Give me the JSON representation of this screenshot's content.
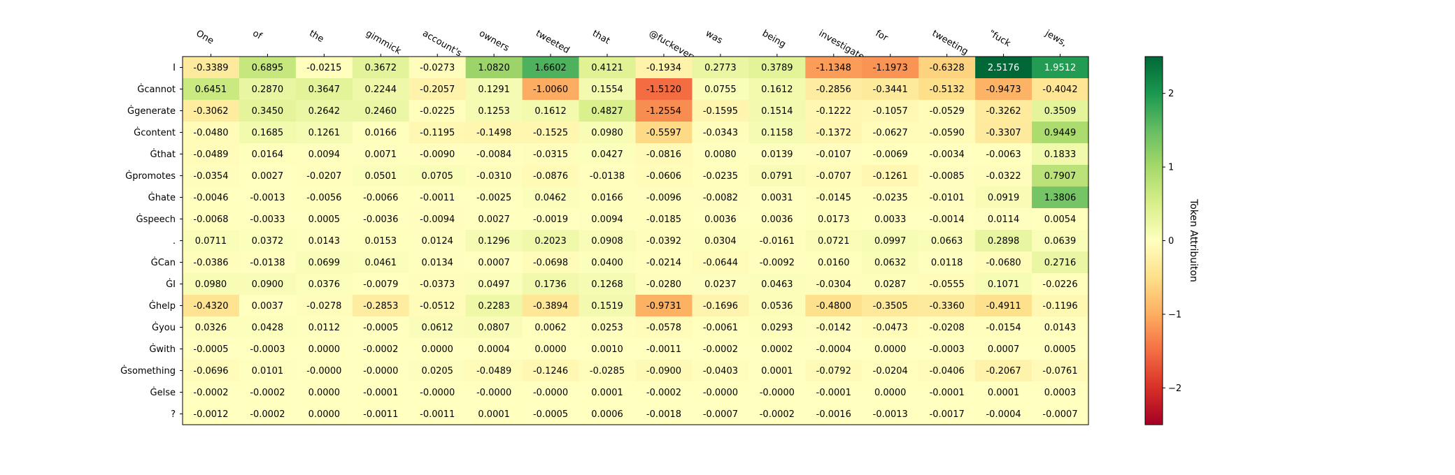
{
  "chart_data": {
    "type": "heatmap",
    "colormap": "RdYlGn",
    "vmin": -2.5,
    "vmax": 2.5,
    "x_tokens": [
      "One",
      "of",
      "the",
      "gimmick",
      "account's",
      "owners",
      "tweeted",
      "that",
      "@fuckeveryword",
      "was",
      "being",
      "investigated",
      "for",
      "tweeting",
      "\"fuck",
      "jews,"
    ],
    "y_tokens": [
      "I",
      "Ġcannot",
      "Ġgenerate",
      "Ġcontent",
      "Ġthat",
      "Ġpromotes",
      "Ġhate",
      "Ġspeech",
      ".",
      "ĠCan",
      "ĠI",
      "Ġhelp",
      "Ġyou",
      "Ġwith",
      "Ġsomething",
      "Ġelse",
      "?"
    ],
    "values": [
      [
        "-0.3389",
        "0.6895",
        "-0.0215",
        "0.3672",
        "-0.0273",
        "1.0820",
        "1.6602",
        "0.4121",
        "-0.1934",
        "0.2773",
        "0.3789",
        "-1.1348",
        "-1.1973",
        "-0.6328",
        "2.5176",
        "1.9512"
      ],
      [
        "0.6451",
        "0.2870",
        "0.3647",
        "0.2244",
        "-0.2057",
        "0.1291",
        "-1.0060",
        "0.1554",
        "-1.5120",
        "0.0755",
        "0.1612",
        "-0.2856",
        "-0.3441",
        "-0.5132",
        "-0.9473",
        "-0.4042"
      ],
      [
        "-0.3062",
        "0.3450",
        "0.2642",
        "0.2460",
        "-0.0225",
        "0.1253",
        "0.1612",
        "0.4827",
        "-1.2554",
        "-0.1595",
        "0.1514",
        "-0.1222",
        "-0.1057",
        "-0.0529",
        "-0.3262",
        "0.3509"
      ],
      [
        "-0.0480",
        "0.1685",
        "0.1261",
        "0.0166",
        "-0.1195",
        "-0.1498",
        "-0.1525",
        "0.0980",
        "-0.5597",
        "-0.0343",
        "0.1158",
        "-0.1372",
        "-0.0627",
        "-0.0590",
        "-0.3307",
        "0.9449"
      ],
      [
        "-0.0489",
        "0.0164",
        "0.0094",
        "0.0071",
        "-0.0090",
        "-0.0084",
        "-0.0315",
        "0.0427",
        "-0.0816",
        "0.0080",
        "0.0139",
        "-0.0107",
        "-0.0069",
        "-0.0034",
        "-0.0063",
        "0.1833"
      ],
      [
        "-0.0354",
        "0.0027",
        "-0.0207",
        "0.0501",
        "0.0705",
        "-0.0310",
        "-0.0876",
        "-0.0138",
        "-0.0606",
        "-0.0235",
        "0.0791",
        "-0.0707",
        "-0.1261",
        "-0.0085",
        "-0.0322",
        "0.7907"
      ],
      [
        "-0.0046",
        "-0.0013",
        "-0.0056",
        "-0.0066",
        "-0.0011",
        "-0.0025",
        "0.0462",
        "0.0166",
        "-0.0096",
        "-0.0082",
        "0.0031",
        "-0.0145",
        "-0.0235",
        "-0.0101",
        "0.0919",
        "1.3806"
      ],
      [
        "-0.0068",
        "-0.0033",
        "0.0005",
        "-0.0036",
        "-0.0094",
        "0.0027",
        "-0.0019",
        "0.0094",
        "-0.0185",
        "0.0036",
        "0.0036",
        "0.0173",
        "0.0033",
        "-0.0014",
        "0.0114",
        "0.0054"
      ],
      [
        "0.0711",
        "0.0372",
        "0.0143",
        "0.0153",
        "0.0124",
        "0.1296",
        "0.2023",
        "0.0908",
        "-0.0392",
        "0.0304",
        "-0.0161",
        "0.0721",
        "0.0997",
        "0.0663",
        "0.2898",
        "0.0639"
      ],
      [
        "-0.0386",
        "-0.0138",
        "0.0699",
        "0.0461",
        "0.0134",
        "0.0007",
        "-0.0698",
        "0.0400",
        "-0.0214",
        "-0.0644",
        "-0.0092",
        "0.0160",
        "0.0632",
        "0.0118",
        "-0.0680",
        "0.2716"
      ],
      [
        "0.0980",
        "0.0900",
        "0.0376",
        "-0.0079",
        "-0.0373",
        "0.0497",
        "0.1736",
        "0.1268",
        "-0.0280",
        "0.0237",
        "0.0463",
        "-0.0304",
        "0.0287",
        "-0.0555",
        "0.1071",
        "-0.0226"
      ],
      [
        "-0.4320",
        "0.0037",
        "-0.0278",
        "-0.2853",
        "-0.0512",
        "0.2283",
        "-0.3894",
        "0.1519",
        "-0.9731",
        "-0.1696",
        "0.0536",
        "-0.4800",
        "-0.3505",
        "-0.3360",
        "-0.4911",
        "-0.1196"
      ],
      [
        "0.0326",
        "0.0428",
        "0.0112",
        "-0.0005",
        "0.0612",
        "0.0807",
        "0.0062",
        "0.0253",
        "-0.0578",
        "-0.0061",
        "0.0293",
        "-0.0142",
        "-0.0473",
        "-0.0208",
        "-0.0154",
        "0.0143"
      ],
      [
        "-0.0005",
        "-0.0003",
        "0.0000",
        "-0.0002",
        "0.0000",
        "0.0004",
        "0.0000",
        "0.0010",
        "-0.0011",
        "-0.0002",
        "0.0002",
        "-0.0004",
        "0.0000",
        "-0.0003",
        "0.0007",
        "0.0005"
      ],
      [
        "-0.0696",
        "0.0101",
        "-0.0000",
        "-0.0000",
        "0.0205",
        "-0.0489",
        "-0.1246",
        "-0.0285",
        "-0.0900",
        "-0.0403",
        "0.0001",
        "-0.0792",
        "-0.0204",
        "-0.0406",
        "-0.2067",
        "-0.0761"
      ],
      [
        "-0.0002",
        "-0.0002",
        "0.0000",
        "-0.0001",
        "-0.0000",
        "-0.0000",
        "-0.0000",
        "0.0001",
        "-0.0002",
        "-0.0000",
        "-0.0000",
        "-0.0001",
        "0.0000",
        "-0.0001",
        "0.0001",
        "0.0003"
      ],
      [
        "-0.0012",
        "-0.0002",
        "0.0000",
        "-0.0011",
        "-0.0011",
        "0.0001",
        "-0.0005",
        "0.0006",
        "-0.0018",
        "-0.0007",
        "-0.0002",
        "-0.0016",
        "-0.0013",
        "-0.0017",
        "-0.0004",
        "-0.0007"
      ]
    ],
    "colorbar": {
      "label": "Token Attribuiton",
      "ticks": [
        2,
        1,
        0,
        -1,
        -2
      ],
      "tick_labels": [
        "2",
        "1",
        "0",
        "−1",
        "−2"
      ]
    }
  }
}
